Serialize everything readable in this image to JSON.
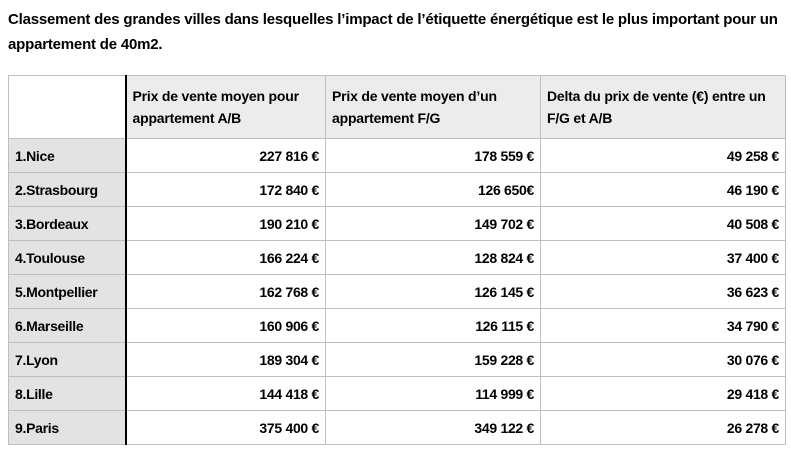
{
  "title": "Classement des grandes villes dans lesquelles l’impact de l’étiquette énergétique est le plus important pour un appartement de 40m2.",
  "colors": {
    "header_bg": "#ececec",
    "label_column_bg": "#e3e3e3",
    "grid_line": "#bfbfbf",
    "strong_border": "#000000"
  },
  "table": {
    "columns": [
      "",
      "Prix de vente moyen pour appartement A/B",
      "Prix de vente moyen d’un appartement F/G",
      "Delta du prix de vente (€) entre un F/G et A/B"
    ],
    "rows": [
      {
        "city": "1.Nice",
        "ab": "227 816 €",
        "fg": "178 559 €",
        "delta": "49 258 €"
      },
      {
        "city": "2.Strasbourg",
        "ab": "172 840 €",
        "fg": "126 650€",
        "delta": "46 190 €"
      },
      {
        "city": "3.Bordeaux",
        "ab": "190 210 €",
        "fg": "149 702 €",
        "delta": "40 508 €"
      },
      {
        "city": "4.Toulouse",
        "ab": "166 224 €",
        "fg": "128 824 €",
        "delta": "37 400 €"
      },
      {
        "city": "5.Montpellier",
        "ab": "162 768 €",
        "fg": "126 145 €",
        "delta": "36 623 €"
      },
      {
        "city": "6.Marseille",
        "ab": "160 906 €",
        "fg": "126 115 €",
        "delta": "34 790 €"
      },
      {
        "city": "7.Lyon",
        "ab": "189 304 €",
        "fg": "159 228 €",
        "delta": "30 076 €"
      },
      {
        "city": "8.Lille",
        "ab": "144 418 €",
        "fg": "114 999 €",
        "delta": "29 418 €"
      },
      {
        "city": "9.Paris",
        "ab": "375 400 €",
        "fg": "349 122 €",
        "delta": "26 278 €"
      }
    ]
  }
}
